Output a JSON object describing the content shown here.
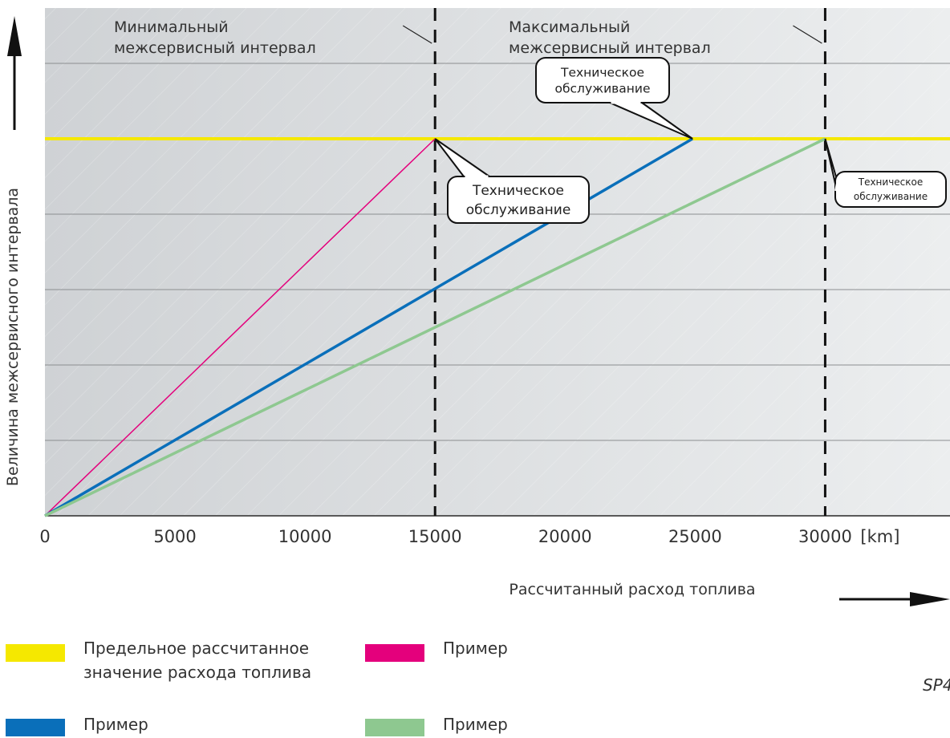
{
  "chart_data": {
    "type": "line",
    "xlabel": "Рассчитанный расход топлива",
    "ylabel": "Величина межсервисного интервала",
    "x_unit": "[km]",
    "xlim": [
      0,
      34800
    ],
    "ylim": [
      0,
      10
    ],
    "x_ticks": [
      "0",
      "5000",
      "10000",
      "15000",
      "20000",
      "25000",
      "30000"
    ],
    "x_tick_values": [
      0,
      5000,
      10000,
      15000,
      20000,
      25000,
      30000
    ],
    "limit_value": 10,
    "series": [
      {
        "name": "Пример",
        "color": "#e4007c",
        "x": [
          0,
          15000
        ],
        "y": [
          0,
          10
        ]
      },
      {
        "name": "Пример",
        "color": "#0a6fba",
        "x": [
          0,
          24900
        ],
        "y": [
          0,
          10
        ]
      },
      {
        "name": "Пример",
        "color": "#8ec890",
        "x": [
          0,
          30000
        ],
        "y": [
          0,
          10
        ]
      }
    ],
    "limit_line": {
      "name": "Предельное рассчитанное\nзначение расхода топлива",
      "color": "#f5e800"
    },
    "regions": [
      {
        "label": "Минимальный\nмежсервисный интервал",
        "x_end": 15000
      },
      {
        "label": "Максимальный\nмежсервисный интервал",
        "x_end": 30000
      }
    ],
    "callouts": [
      {
        "text": "Техническое\nобслуживание",
        "x": 24900
      },
      {
        "text": "Техническое\nобслуживание",
        "x": 15000
      },
      {
        "text": "Техническое\nобслуживание",
        "x": 30000
      }
    ]
  },
  "legend": [
    {
      "label": "Предельное рассчитанное\nзначение расхода топлива",
      "color": "#f5e800"
    },
    {
      "label": "Пример",
      "color": "#e4007c"
    },
    {
      "label": "Пример",
      "color": "#0a6fba"
    },
    {
      "label": "Пример",
      "color": "#8ec890"
    }
  ],
  "figure_id": "SP4"
}
